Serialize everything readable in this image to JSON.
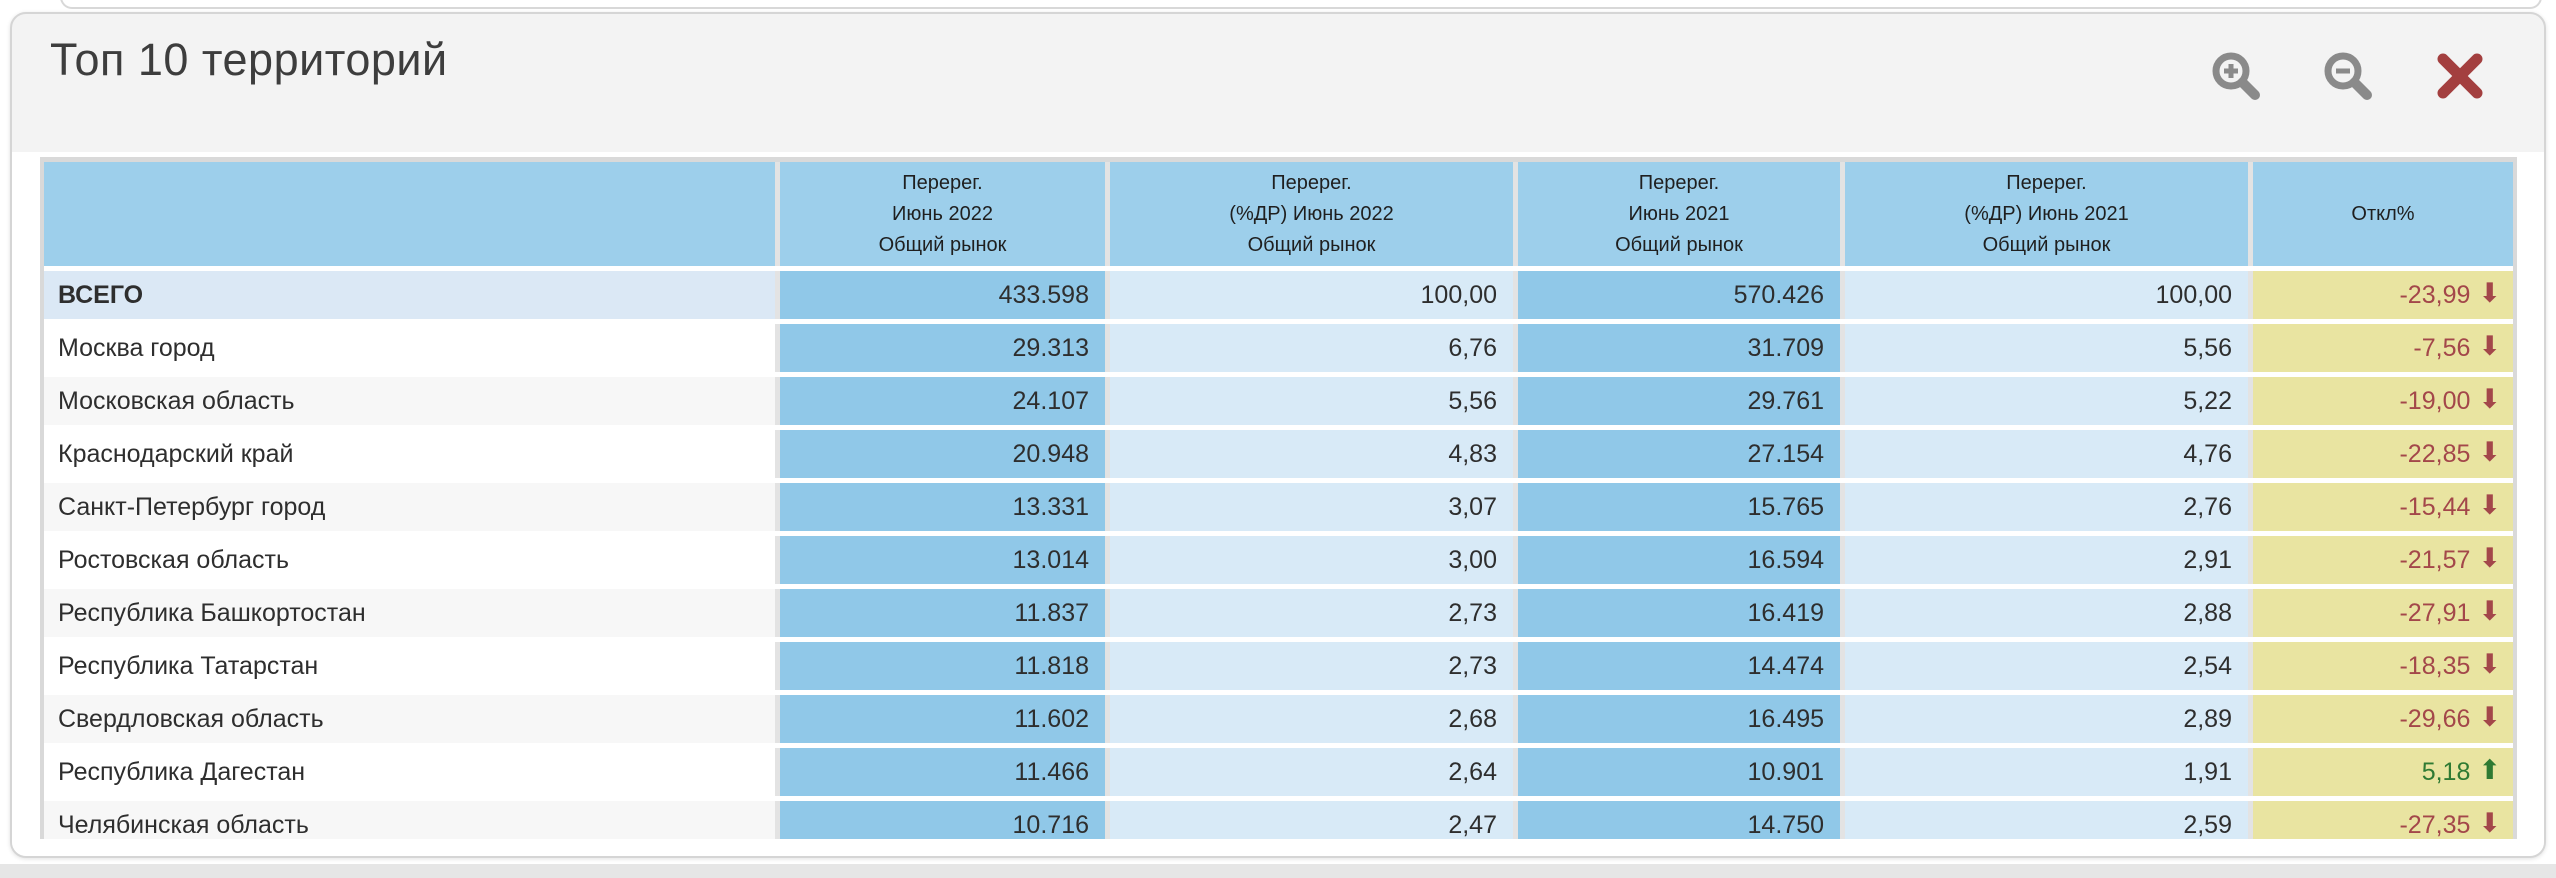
{
  "widget": {
    "title": "Топ 10 территорий",
    "toolbar": {
      "icons": [
        {
          "name": "zoom-in-icon"
        },
        {
          "name": "zoom-out-icon"
        },
        {
          "name": "close-icon"
        }
      ]
    }
  },
  "table": {
    "columns": [
      {
        "id": "territory",
        "label_lines": []
      },
      {
        "id": "reg-june-2022",
        "label_lines": [
          "Перерег.",
          "Июнь 2022",
          "Общий рынок"
        ]
      },
      {
        "id": "share-june-2022",
        "label_lines": [
          "Перерег.",
          "(%ДР) Июнь 2022",
          "Общий рынок"
        ]
      },
      {
        "id": "reg-june-2021",
        "label_lines": [
          "Перерег.",
          "Июнь 2021",
          "Общий рынок"
        ]
      },
      {
        "id": "share-june-2021",
        "label_lines": [
          "Перерег.",
          "(%ДР) Июнь 2021",
          "Общий рынок"
        ]
      },
      {
        "id": "deviation",
        "label_lines": [
          "Откл%"
        ]
      }
    ],
    "trend_glyphs": {
      "down": "⬇",
      "up": "⬆"
    },
    "rows": [
      {
        "territory": "ВСЕГО",
        "is_total": true,
        "reg_2022": "433.598",
        "share_2022": "100,00",
        "reg_2021": "570.426",
        "share_2021": "100,00",
        "deviation": "-23,99",
        "trend": "down"
      },
      {
        "territory": "Москва город",
        "reg_2022": "29.313",
        "share_2022": "6,76",
        "reg_2021": "31.709",
        "share_2021": "5,56",
        "deviation": "-7,56",
        "trend": "down"
      },
      {
        "territory": "Московская область",
        "reg_2022": "24.107",
        "share_2022": "5,56",
        "reg_2021": "29.761",
        "share_2021": "5,22",
        "deviation": "-19,00",
        "trend": "down"
      },
      {
        "territory": "Краснодарский край",
        "reg_2022": "20.948",
        "share_2022": "4,83",
        "reg_2021": "27.154",
        "share_2021": "4,76",
        "deviation": "-22,85",
        "trend": "down"
      },
      {
        "territory": "Санкт-Петербург город",
        "reg_2022": "13.331",
        "share_2022": "3,07",
        "reg_2021": "15.765",
        "share_2021": "2,76",
        "deviation": "-15,44",
        "trend": "down"
      },
      {
        "territory": "Ростовская область",
        "reg_2022": "13.014",
        "share_2022": "3,00",
        "reg_2021": "16.594",
        "share_2021": "2,91",
        "deviation": "-21,57",
        "trend": "down"
      },
      {
        "territory": "Республика Башкортостан",
        "reg_2022": "11.837",
        "share_2022": "2,73",
        "reg_2021": "16.419",
        "share_2021": "2,88",
        "deviation": "-27,91",
        "trend": "down"
      },
      {
        "territory": "Республика Татарстан",
        "reg_2022": "11.818",
        "share_2022": "2,73",
        "reg_2021": "14.474",
        "share_2021": "2,54",
        "deviation": "-18,35",
        "trend": "down"
      },
      {
        "territory": "Свердловская область",
        "reg_2022": "11.602",
        "share_2022": "2,68",
        "reg_2021": "16.495",
        "share_2021": "2,89",
        "deviation": "-29,66",
        "trend": "down"
      },
      {
        "territory": "Республика Дагестан",
        "reg_2022": "11.466",
        "share_2022": "2,64",
        "reg_2021": "10.901",
        "share_2021": "1,91",
        "deviation": "5,18",
        "trend": "up"
      },
      {
        "territory": "Челябинская область",
        "reg_2022": "10.716",
        "share_2022": "2,47",
        "reg_2021": "14.750",
        "share_2021": "2,59",
        "deviation": "-27,35",
        "trend": "down"
      }
    ]
  },
  "theme": {
    "header_cell": "#9dcfeb",
    "count_cell": "#90c8e8",
    "share_cell": "#d8eaf7",
    "total_label_cell": "#dbe8f5",
    "row_alt": "#f7f7f7",
    "dev_cell": "#e9e4a1",
    "neg": "#a3474a",
    "pos": "#2f7a33",
    "gap_v": "#e3e3e3",
    "table_edge": "#d9d9d9",
    "icon_gray": "#8a8a8a",
    "close_red": "#a33f3f",
    "panel_bg": "#f3f3f3",
    "body_bg": "#ffffff",
    "page_strip": "#e6e6e6"
  }
}
